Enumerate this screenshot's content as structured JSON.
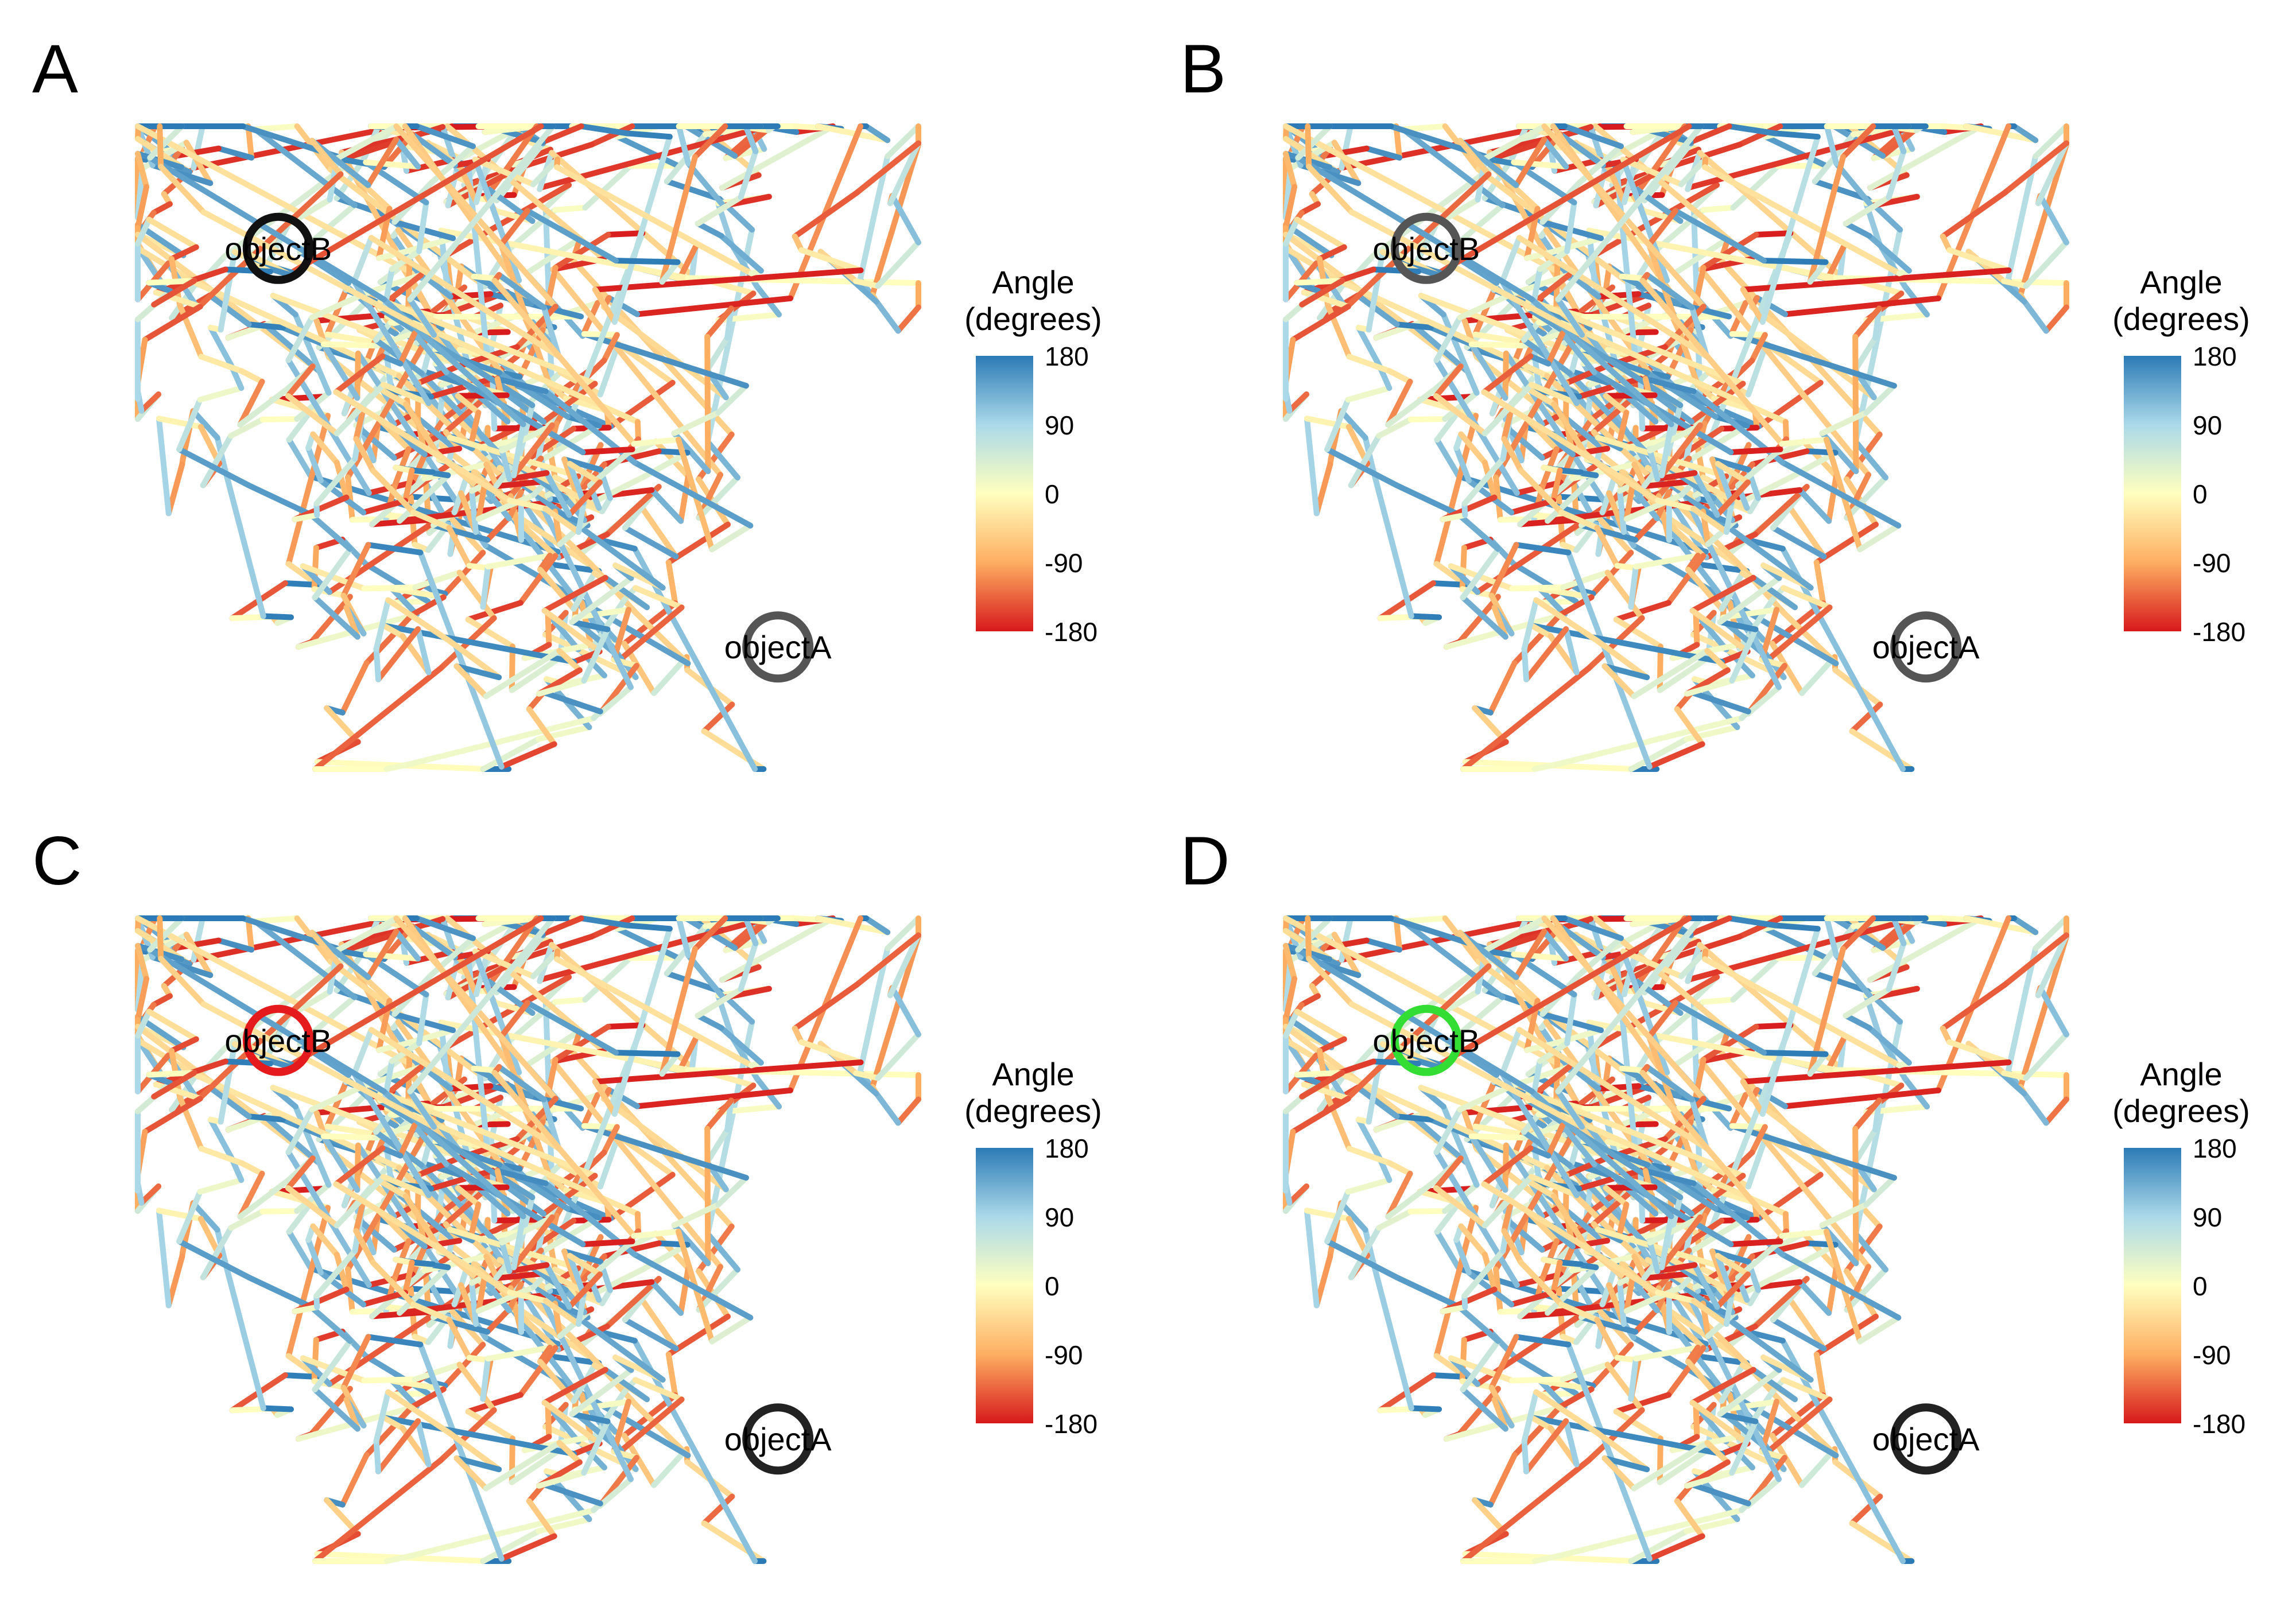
{
  "chart_data": [
    {
      "type": "line",
      "panel": "A",
      "legend": {
        "title": [
          "Angle",
          "(degrees)"
        ],
        "ticks": [
          "180",
          "90",
          "0",
          "-90",
          "-180"
        ],
        "placement": "right"
      },
      "colorscale": {
        "min": -180,
        "max": 180,
        "colors": [
          "#d7191c",
          "#fdae61",
          "#ffffbf",
          "#abd9e9",
          "#2c7bb6"
        ]
      },
      "objects": [
        {
          "name": "objectB",
          "x": 0.18,
          "y": 0.81,
          "ring_color": "#111111"
        },
        {
          "name": "objectA",
          "x": 0.82,
          "y": 0.19,
          "ring_color": "#555555"
        }
      ]
    },
    {
      "type": "line",
      "panel": "B",
      "legend": {
        "title": [
          "Angle",
          "(degrees)"
        ],
        "ticks": [
          "180",
          "90",
          "0",
          "-90",
          "-180"
        ],
        "placement": "right"
      },
      "colorscale": {
        "min": -180,
        "max": 180,
        "colors": [
          "#d7191c",
          "#fdae61",
          "#ffffbf",
          "#abd9e9",
          "#2c7bb6"
        ]
      },
      "objects": [
        {
          "name": "objectB",
          "x": 0.18,
          "y": 0.81,
          "ring_color": "#555555"
        },
        {
          "name": "objectA",
          "x": 0.82,
          "y": 0.19,
          "ring_color": "#555555"
        }
      ]
    },
    {
      "type": "line",
      "panel": "C",
      "legend": {
        "title": [
          "Angle",
          "(degrees)"
        ],
        "ticks": [
          "180",
          "90",
          "0",
          "-90",
          "-180"
        ],
        "placement": "right"
      },
      "colorscale": {
        "min": -180,
        "max": 180,
        "colors": [
          "#d7191c",
          "#fdae61",
          "#ffffbf",
          "#abd9e9",
          "#2c7bb6"
        ]
      },
      "objects": [
        {
          "name": "objectB",
          "x": 0.18,
          "y": 0.81,
          "ring_color": "#e41a1c"
        },
        {
          "name": "objectA",
          "x": 0.82,
          "y": 0.19,
          "ring_color": "#222222"
        }
      ]
    },
    {
      "type": "line",
      "panel": "D",
      "legend": {
        "title": [
          "Angle",
          "(degrees)"
        ],
        "ticks": [
          "180",
          "90",
          "0",
          "-90",
          "-180"
        ],
        "placement": "right"
      },
      "colorscale": {
        "min": -180,
        "max": 180,
        "colors": [
          "#d7191c",
          "#fdae61",
          "#ffffbf",
          "#abd9e9",
          "#2c7bb6"
        ]
      },
      "objects": [
        {
          "name": "objectB",
          "x": 0.18,
          "y": 0.81,
          "ring_color": "#33dd33"
        },
        {
          "name": "objectA",
          "x": 0.82,
          "y": 0.19,
          "ring_color": "#222222"
        }
      ]
    }
  ]
}
